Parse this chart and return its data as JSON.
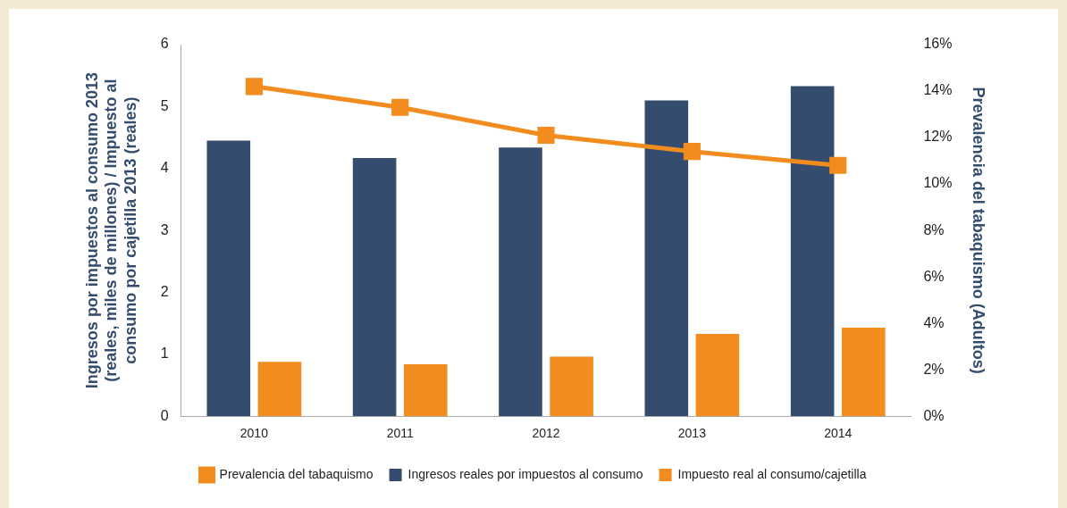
{
  "chart_data": {
    "type": "bar",
    "categories": [
      "2010",
      "2011",
      "2012",
      "2013",
      "2014"
    ],
    "ylabel": "Ingresos por impuestos al consumo 2013 (reales, miles de millones) / Impuesto al consumo por cajetilla 2013 (reales)",
    "y2label": "Prevalencia del tabaquismo (Adultos)",
    "series": [
      {
        "name": "Ingresos reales por impuestos al consumo",
        "color": "#344d6e",
        "values": [
          4.45,
          4.17,
          4.34,
          5.1,
          5.33
        ]
      },
      {
        "name": "Impuesto real al consumo/cajetilla",
        "color": "#f28c1e",
        "values": [
          0.88,
          0.84,
          0.96,
          1.33,
          1.43
        ]
      },
      {
        "name": "Prevalencia del tabaquismo",
        "type": "line",
        "axis": "y2",
        "color": "#f28c1e",
        "marker": "square",
        "values": [
          14.2,
          13.3,
          12.1,
          11.4,
          10.8
        ]
      }
    ],
    "ylim": [
      0,
      6
    ],
    "yticks": [
      0,
      1,
      2,
      3,
      4,
      5,
      6
    ],
    "y2lim": [
      0,
      16
    ],
    "y2ticks": [
      {
        "value": 0,
        "label": "0%"
      },
      {
        "value": 2,
        "label": "2%"
      },
      {
        "value": 4,
        "label": "4%"
      },
      {
        "value": 6,
        "label": "6%"
      },
      {
        "value": 8,
        "label": "8%"
      },
      {
        "value": 10,
        "label": "10%"
      },
      {
        "value": 12,
        "label": "12%"
      },
      {
        "value": 14,
        "label": "14%"
      },
      {
        "value": 16,
        "label": "16%"
      }
    ],
    "grid": false,
    "legend": "bottom"
  }
}
